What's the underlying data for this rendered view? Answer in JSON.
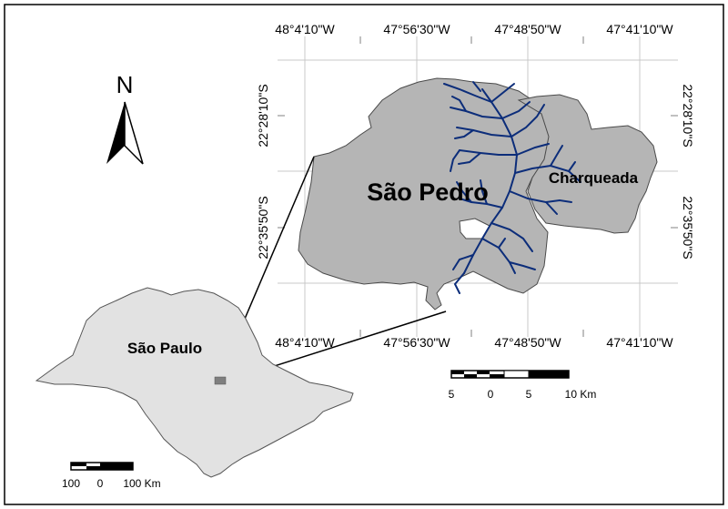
{
  "colors": {
    "study_area_fill": "#b5b5b5",
    "state_fill": "#e2e2e2",
    "drainage": "#0c2d7a",
    "location_highlight": "#7f7f7f",
    "graticule": "#c8c8c8"
  },
  "graticule": {
    "top_lon_labels": [
      "48°4'10\"W",
      "47°56'30\"W",
      "47°48'50\"W",
      "47°41'10\"W"
    ],
    "bottom_lon_labels": [
      "48°4'10\"W",
      "47°56'30\"W",
      "47°48'50\"W",
      "47°41'10\"W"
    ],
    "left_lat_labels": [
      "22°28'10\"S",
      "22°35'50\"S"
    ],
    "right_lat_labels": [
      "22°28'10\"S",
      "22°35'50\"S"
    ]
  },
  "labels": {
    "sao_pedro": "São Pedro",
    "charqueada": "Charqueada",
    "sao_paulo": "São Paulo",
    "north": "N"
  },
  "scalebar_detail": {
    "labels": [
      "5",
      "0",
      "5",
      "10 Km"
    ]
  },
  "scalebar_state": {
    "labels": [
      "100",
      "0",
      "100 Km"
    ]
  },
  "icons": {
    "north_arrow": "north-arrow-icon"
  }
}
